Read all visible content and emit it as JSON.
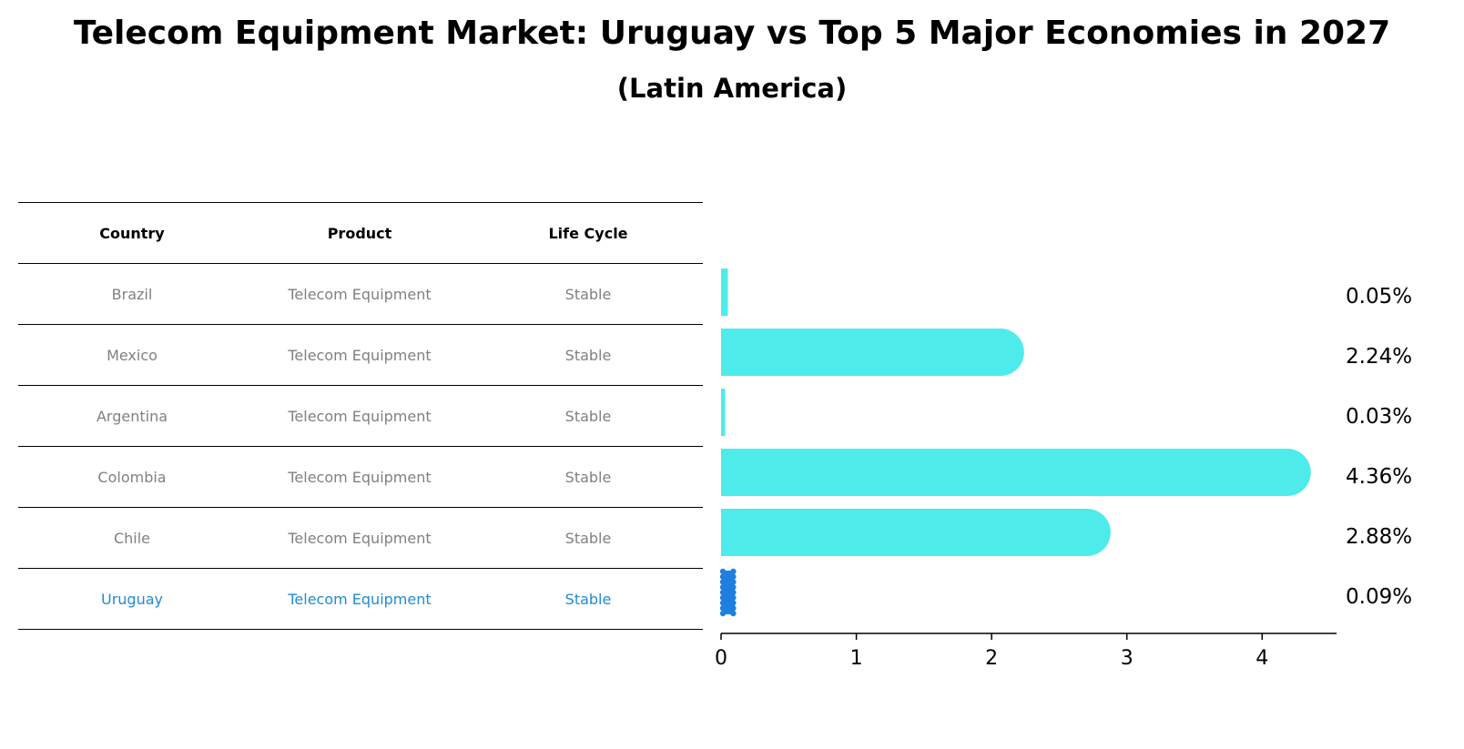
{
  "title": "Telecom Equipment Market: Uruguay vs Top 5 Major Economies in 2027",
  "subtitle": "(Latin America)",
  "table": {
    "headers": [
      "Country",
      "Product",
      "Life Cycle"
    ],
    "rows": [
      [
        "Brazil",
        "Telecom Equipment",
        "Stable"
      ],
      [
        "Mexico",
        "Telecom Equipment",
        "Stable"
      ],
      [
        "Argentina",
        "Telecom Equipment",
        "Stable"
      ],
      [
        "Colombia",
        "Telecom Equipment",
        "Stable"
      ],
      [
        "Chile",
        "Telecom Equipment",
        "Stable"
      ],
      [
        "Uruguay",
        "Telecom Equipment",
        "Stable"
      ]
    ]
  },
  "colors": {
    "bar": "#4deceb",
    "highlight": "#1f7fe0",
    "highlight_text": "#1f8bd6",
    "muted_text": "#808080"
  },
  "chart_data": {
    "type": "bar",
    "orientation": "horizontal",
    "categories": [
      "Brazil",
      "Mexico",
      "Argentina",
      "Colombia",
      "Chile",
      "Uruguay"
    ],
    "values": [
      0.05,
      2.24,
      0.03,
      4.36,
      2.88,
      0.09
    ],
    "value_labels": [
      "0.05%",
      "2.24%",
      "0.03%",
      "4.36%",
      "2.88%",
      "0.09%"
    ],
    "highlight_category": "Uruguay",
    "xlim": [
      0,
      4.55
    ],
    "xticks": [
      0,
      1,
      2,
      3,
      4
    ],
    "grid": false
  }
}
